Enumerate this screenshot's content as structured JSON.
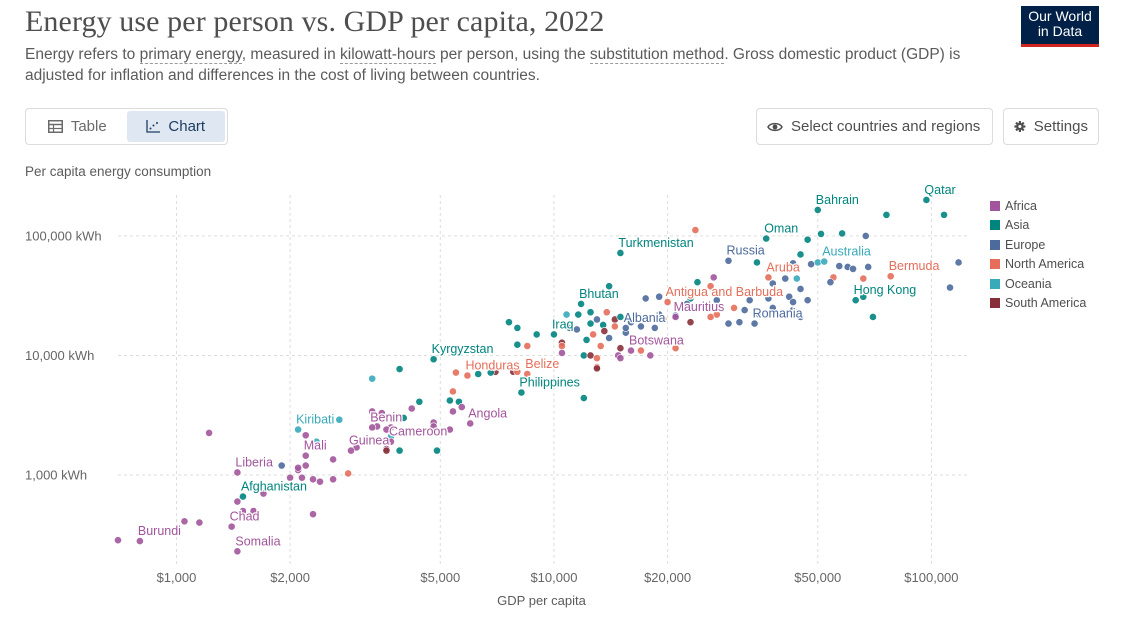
{
  "header": {
    "title": "Energy use per person vs. GDP per capita, 2022",
    "subtitle_parts": [
      {
        "text": "Energy refers to ",
        "link": false
      },
      {
        "text": "primary energy",
        "link": true
      },
      {
        "text": ", measured in ",
        "link": false
      },
      {
        "text": "kilowatt-hours",
        "link": true
      },
      {
        "text": " per person, using the ",
        "link": false
      },
      {
        "text": "substitution method",
        "link": true
      },
      {
        "text": ". Gross domestic product (GDP) is adjusted for inflation and differences in the cost of living between countries.",
        "link": false
      }
    ],
    "logo_line1": "Our World",
    "logo_line2": "in Data"
  },
  "controls": {
    "tab_table": "Table",
    "tab_chart": "Chart",
    "select_button": "Select countries and regions",
    "settings_button": "Settings"
  },
  "colors": {
    "Africa": "#a2559c",
    "Asia": "#00847e",
    "Europe": "#4c6a9c",
    "North America": "#e56e5a",
    "Oceania": "#38aaba",
    "South America": "#883039"
  },
  "chart_data": {
    "type": "scatter",
    "title": "Energy use per person vs. GDP per capita, 2022",
    "xlabel": "GDP per capita",
    "ylabel": "Per capita energy consumption",
    "x_scale": "log",
    "y_scale": "log",
    "xlim": [
      700,
      125000
    ],
    "ylim": [
      170,
      220000
    ],
    "x_ticks": [
      {
        "value": 1000,
        "label": "$1,000"
      },
      {
        "value": 2000,
        "label": "$2,000"
      },
      {
        "value": 5000,
        "label": "$5,000"
      },
      {
        "value": 10000,
        "label": "$10,000"
      },
      {
        "value": 20000,
        "label": "$20,000"
      },
      {
        "value": 50000,
        "label": "$50,000"
      },
      {
        "value": 100000,
        "label": "$100,000"
      }
    ],
    "y_ticks": [
      {
        "value": 1000,
        "label": "1,000 kWh"
      },
      {
        "value": 10000,
        "label": "10,000 kWh"
      },
      {
        "value": 100000,
        "label": "100,000 kWh"
      }
    ],
    "grid": true,
    "legend_position": "right",
    "legend": [
      "Africa",
      "Asia",
      "Europe",
      "North America",
      "Oceania",
      "South America"
    ],
    "labeled_points": [
      {
        "name": "Bahrain",
        "region": "Asia",
        "x": 50000,
        "y": 165000
      },
      {
        "name": "Qatar",
        "region": "Asia",
        "x": 97000,
        "y": 200000
      },
      {
        "name": "Oman",
        "region": "Asia",
        "x": 36500,
        "y": 95000
      },
      {
        "name": "Turkmenistan",
        "region": "Asia",
        "x": 15000,
        "y": 72000
      },
      {
        "name": "Russia",
        "region": "Europe",
        "x": 29000,
        "y": 62000
      },
      {
        "name": "Australia",
        "region": "Oceania",
        "x": 52000,
        "y": 61000
      },
      {
        "name": "Aruba",
        "region": "North America",
        "x": 37000,
        "y": 45000
      },
      {
        "name": "Bermuda",
        "region": "North America",
        "x": 78000,
        "y": 46000
      },
      {
        "name": "Antigua and Barbuda",
        "region": "North America",
        "x": 20000,
        "y": 28000
      },
      {
        "name": "Hong Kong",
        "region": "Asia",
        "x": 63000,
        "y": 29000
      },
      {
        "name": "Bhutan",
        "region": "Asia",
        "x": 11800,
        "y": 27000
      },
      {
        "name": "Mauritius",
        "region": "Africa",
        "x": 21000,
        "y": 21000
      },
      {
        "name": "Romania",
        "region": "Europe",
        "x": 34000,
        "y": 18500
      },
      {
        "name": "Iraq",
        "region": "Asia",
        "x": 10000,
        "y": 15000
      },
      {
        "name": "Albania",
        "region": "Europe",
        "x": 15500,
        "y": 17000
      },
      {
        "name": "Botswana",
        "region": "Africa",
        "x": 16000,
        "y": 11000
      },
      {
        "name": "Kyrgyzstan",
        "region": "Asia",
        "x": 4800,
        "y": 9300
      },
      {
        "name": "Belize",
        "region": "North America",
        "x": 8500,
        "y": 7000
      },
      {
        "name": "Honduras",
        "region": "North America",
        "x": 5900,
        "y": 6800
      },
      {
        "name": "Philippines",
        "region": "Asia",
        "x": 8200,
        "y": 4900
      },
      {
        "name": "Angola",
        "region": "Africa",
        "x": 6000,
        "y": 2700
      },
      {
        "name": "Kiribati",
        "region": "Oceania",
        "x": 2100,
        "y": 2400
      },
      {
        "name": "Benin",
        "region": "Africa",
        "x": 3300,
        "y": 2500
      },
      {
        "name": "Cameroon",
        "region": "Africa",
        "x": 3700,
        "y": 1900
      },
      {
        "name": "Mali",
        "region": "Africa",
        "x": 2200,
        "y": 1450
      },
      {
        "name": "Guinea",
        "region": "Africa",
        "x": 2900,
        "y": 1600
      },
      {
        "name": "Liberia",
        "region": "Africa",
        "x": 1450,
        "y": 1050
      },
      {
        "name": "Afghanistan",
        "region": "Asia",
        "x": 1500,
        "y": 660
      },
      {
        "name": "Chad",
        "region": "Africa",
        "x": 1400,
        "y": 370
      },
      {
        "name": "Burundi",
        "region": "Africa",
        "x": 800,
        "y": 280
      },
      {
        "name": "Somalia",
        "region": "Africa",
        "x": 1450,
        "y": 230
      }
    ],
    "other_points": [
      {
        "region": "Asia",
        "x": 108000,
        "y": 150000
      },
      {
        "region": "Asia",
        "x": 76000,
        "y": 150000
      },
      {
        "region": "Asia",
        "x": 58000,
        "y": 105000
      },
      {
        "region": "Europe",
        "x": 67000,
        "y": 100000
      },
      {
        "region": "Asia",
        "x": 51000,
        "y": 104000
      },
      {
        "region": "North America",
        "x": 23700,
        "y": 112000
      },
      {
        "region": "Asia",
        "x": 47000,
        "y": 93000
      },
      {
        "region": "Asia",
        "x": 45000,
        "y": 70000
      },
      {
        "region": "Asia",
        "x": 34500,
        "y": 60000
      },
      {
        "region": "Europe",
        "x": 43000,
        "y": 59000
      },
      {
        "region": "Europe",
        "x": 57000,
        "y": 56000
      },
      {
        "region": "Europe",
        "x": 60000,
        "y": 55000
      },
      {
        "region": "Europe",
        "x": 62000,
        "y": 53000
      },
      {
        "region": "Europe",
        "x": 68000,
        "y": 55000
      },
      {
        "region": "Europe",
        "x": 118000,
        "y": 60000
      },
      {
        "region": "Oceania",
        "x": 50000,
        "y": 60000
      },
      {
        "region": "Europe",
        "x": 48000,
        "y": 58000
      },
      {
        "region": "Europe",
        "x": 38000,
        "y": 40000
      },
      {
        "region": "Europe",
        "x": 41000,
        "y": 44000
      },
      {
        "region": "Oceania",
        "x": 44000,
        "y": 44000
      },
      {
        "region": "Africa",
        "x": 26500,
        "y": 45000
      },
      {
        "region": "North America",
        "x": 26000,
        "y": 38000
      },
      {
        "region": "North America",
        "x": 55000,
        "y": 45000
      },
      {
        "region": "North America",
        "x": 66000,
        "y": 44000
      },
      {
        "region": "Europe",
        "x": 54000,
        "y": 41000
      },
      {
        "region": "Asia",
        "x": 24000,
        "y": 41000
      },
      {
        "region": "Europe",
        "x": 31000,
        "y": 36000
      },
      {
        "region": "Europe",
        "x": 45000,
        "y": 36000
      },
      {
        "region": "Asia",
        "x": 14000,
        "y": 38000
      },
      {
        "region": "Europe",
        "x": 112000,
        "y": 37000
      },
      {
        "region": "Asia",
        "x": 66000,
        "y": 31000
      },
      {
        "region": "Europe",
        "x": 42000,
        "y": 31000
      },
      {
        "region": "Europe",
        "x": 19000,
        "y": 31000
      },
      {
        "region": "Europe",
        "x": 17500,
        "y": 30000
      },
      {
        "region": "Asia",
        "x": 23000,
        "y": 30000
      },
      {
        "region": "Europe",
        "x": 22500,
        "y": 27000
      },
      {
        "region": "Europe",
        "x": 27000,
        "y": 29000
      },
      {
        "region": "Europe",
        "x": 33000,
        "y": 29000
      },
      {
        "region": "Europe",
        "x": 37000,
        "y": 30000
      },
      {
        "region": "Europe",
        "x": 43000,
        "y": 28000
      },
      {
        "region": "Europe",
        "x": 47000,
        "y": 29000
      },
      {
        "region": "North America",
        "x": 30000,
        "y": 25000
      },
      {
        "region": "Europe",
        "x": 32000,
        "y": 24000
      },
      {
        "region": "North America",
        "x": 27000,
        "y": 22000
      },
      {
        "region": "Europe",
        "x": 35000,
        "y": 22000
      },
      {
        "region": "Europe",
        "x": 38000,
        "y": 25000
      },
      {
        "region": "Europe",
        "x": 43000,
        "y": 24000
      },
      {
        "region": "Europe",
        "x": 45000,
        "y": 21000
      },
      {
        "region": "Europe",
        "x": 31000,
        "y": 19000
      },
      {
        "region": "Europe",
        "x": 29000,
        "y": 18500
      },
      {
        "region": "Asia",
        "x": 70000,
        "y": 21000
      },
      {
        "region": "Europe",
        "x": 19000,
        "y": 22000
      },
      {
        "region": "Europe",
        "x": 21000,
        "y": 21500
      },
      {
        "region": "North America",
        "x": 19500,
        "y": 20000
      },
      {
        "region": "North America",
        "x": 26000,
        "y": 21000
      },
      {
        "region": "South America",
        "x": 23000,
        "y": 19000
      },
      {
        "region": "Asia",
        "x": 11600,
        "y": 22000
      },
      {
        "region": "Oceania",
        "x": 10800,
        "y": 22000
      },
      {
        "region": "Asia",
        "x": 12500,
        "y": 23000
      },
      {
        "region": "North America",
        "x": 13800,
        "y": 23000
      },
      {
        "region": "Europe",
        "x": 13000,
        "y": 20000
      },
      {
        "region": "South America",
        "x": 14500,
        "y": 20000
      },
      {
        "region": "Asia",
        "x": 15000,
        "y": 21000
      },
      {
        "region": "Europe",
        "x": 16000,
        "y": 19000
      },
      {
        "region": "Europe",
        "x": 17000,
        "y": 17500
      },
      {
        "region": "Europe",
        "x": 18500,
        "y": 17000
      },
      {
        "region": "North America",
        "x": 14500,
        "y": 17500
      },
      {
        "region": "Europe",
        "x": 15500,
        "y": 15500
      },
      {
        "region": "Asia",
        "x": 7600,
        "y": 19000
      },
      {
        "region": "Asia",
        "x": 8000,
        "y": 17000
      },
      {
        "region": "Europe",
        "x": 11000,
        "y": 17000
      },
      {
        "region": "Europe",
        "x": 11500,
        "y": 16500
      },
      {
        "region": "Asia",
        "x": 9000,
        "y": 15000
      },
      {
        "region": "Asia",
        "x": 12500,
        "y": 18500
      },
      {
        "region": "Asia",
        "x": 13500,
        "y": 18000
      },
      {
        "region": "South America",
        "x": 13600,
        "y": 16000
      },
      {
        "region": "North America",
        "x": 12700,
        "y": 15000
      },
      {
        "region": "Europe",
        "x": 14000,
        "y": 14000
      },
      {
        "region": "South America",
        "x": 10500,
        "y": 12800
      },
      {
        "region": "North America",
        "x": 10500,
        "y": 12000
      },
      {
        "region": "Asia",
        "x": 8000,
        "y": 12300
      },
      {
        "region": "North America",
        "x": 8500,
        "y": 12000
      },
      {
        "region": "Asia",
        "x": 12200,
        "y": 13500
      },
      {
        "region": "North America",
        "x": 13300,
        "y": 12000
      },
      {
        "region": "South America",
        "x": 15000,
        "y": 11500
      },
      {
        "region": "North America",
        "x": 17000,
        "y": 11000
      },
      {
        "region": "North America",
        "x": 21000,
        "y": 11500
      },
      {
        "region": "Asia",
        "x": 12000,
        "y": 10000
      },
      {
        "region": "South America",
        "x": 12500,
        "y": 10000
      },
      {
        "region": "Africa",
        "x": 14800,
        "y": 10000
      },
      {
        "region": "North America",
        "x": 13000,
        "y": 9500
      },
      {
        "region": "Africa",
        "x": 15000,
        "y": 9500
      },
      {
        "region": "Africa",
        "x": 18000,
        "y": 10000
      },
      {
        "region": "Africa",
        "x": 10500,
        "y": 10500
      },
      {
        "region": "North America",
        "x": 13000,
        "y": 8000
      },
      {
        "region": "South America",
        "x": 13000,
        "y": 7800
      },
      {
        "region": "South America",
        "x": 7800,
        "y": 7300
      },
      {
        "region": "North America",
        "x": 8000,
        "y": 7300
      },
      {
        "region": "South America",
        "x": 7000,
        "y": 7300
      },
      {
        "region": "North America",
        "x": 5500,
        "y": 7200
      },
      {
        "region": "Asia",
        "x": 6800,
        "y": 7200
      },
      {
        "region": "Asia",
        "x": 6300,
        "y": 7000
      },
      {
        "region": "Oceania",
        "x": 3300,
        "y": 6400
      },
      {
        "region": "Asia",
        "x": 3900,
        "y": 7700
      },
      {
        "region": "North America",
        "x": 5400,
        "y": 5000
      },
      {
        "region": "Asia",
        "x": 12000,
        "y": 4400
      },
      {
        "region": "Asia",
        "x": 4400,
        "y": 4100
      },
      {
        "region": "Asia",
        "x": 5300,
        "y": 4200
      },
      {
        "region": "Asia",
        "x": 5600,
        "y": 4100
      },
      {
        "region": "Africa",
        "x": 5700,
        "y": 3700
      },
      {
        "region": "Africa",
        "x": 4200,
        "y": 3600
      },
      {
        "region": "Africa",
        "x": 5400,
        "y": 3400
      },
      {
        "region": "Asia",
        "x": 4000,
        "y": 3000
      },
      {
        "region": "Africa",
        "x": 3300,
        "y": 3400
      },
      {
        "region": "Africa",
        "x": 3500,
        "y": 3300
      },
      {
        "region": "Africa",
        "x": 4800,
        "y": 2750
      },
      {
        "region": "Africa",
        "x": 4800,
        "y": 2550
      },
      {
        "region": "Africa",
        "x": 5300,
        "y": 2400
      },
      {
        "region": "Oceania",
        "x": 2700,
        "y": 2900
      },
      {
        "region": "Africa",
        "x": 3400,
        "y": 2550
      },
      {
        "region": "Africa",
        "x": 3700,
        "y": 2500
      },
      {
        "region": "Africa",
        "x": 3600,
        "y": 2400
      },
      {
        "region": "Oceania",
        "x": 3700,
        "y": 2100
      },
      {
        "region": "Africa",
        "x": 1220,
        "y": 2250
      },
      {
        "region": "Africa",
        "x": 2200,
        "y": 2150
      },
      {
        "region": "Oceania",
        "x": 2350,
        "y": 1900
      },
      {
        "region": "Africa",
        "x": 3000,
        "y": 1700
      },
      {
        "region": "Africa",
        "x": 3600,
        "y": 1650
      },
      {
        "region": "South America",
        "x": 3600,
        "y": 1600
      },
      {
        "region": "Asia",
        "x": 3900,
        "y": 1600
      },
      {
        "region": "Asia",
        "x": 4900,
        "y": 1600
      },
      {
        "region": "Africa",
        "x": 2600,
        "y": 1350
      },
      {
        "region": "Africa",
        "x": 2200,
        "y": 1200
      },
      {
        "region": "Europe",
        "x": 1900,
        "y": 1200
      },
      {
        "region": "Africa",
        "x": 2100,
        "y": 1100
      },
      {
        "region": "Africa",
        "x": 2100,
        "y": 1150
      },
      {
        "region": "North America",
        "x": 2850,
        "y": 1030
      },
      {
        "region": "Africa",
        "x": 2150,
        "y": 950
      },
      {
        "region": "Africa",
        "x": 2300,
        "y": 920
      },
      {
        "region": "Africa",
        "x": 2000,
        "y": 950
      },
      {
        "region": "Africa",
        "x": 2600,
        "y": 920
      },
      {
        "region": "Africa",
        "x": 2400,
        "y": 880
      },
      {
        "region": "Africa",
        "x": 1700,
        "y": 700
      },
      {
        "region": "Africa",
        "x": 1450,
        "y": 600
      },
      {
        "region": "Africa",
        "x": 2300,
        "y": 470
      },
      {
        "region": "Africa",
        "x": 1500,
        "y": 500
      },
      {
        "region": "Africa",
        "x": 1600,
        "y": 500
      },
      {
        "region": "Africa",
        "x": 1050,
        "y": 410
      },
      {
        "region": "Africa",
        "x": 1150,
        "y": 400
      },
      {
        "region": "Africa",
        "x": 700,
        "y": 285
      }
    ]
  },
  "axis_labels": {
    "y": "Per capita energy consumption",
    "x": "GDP per capita"
  }
}
